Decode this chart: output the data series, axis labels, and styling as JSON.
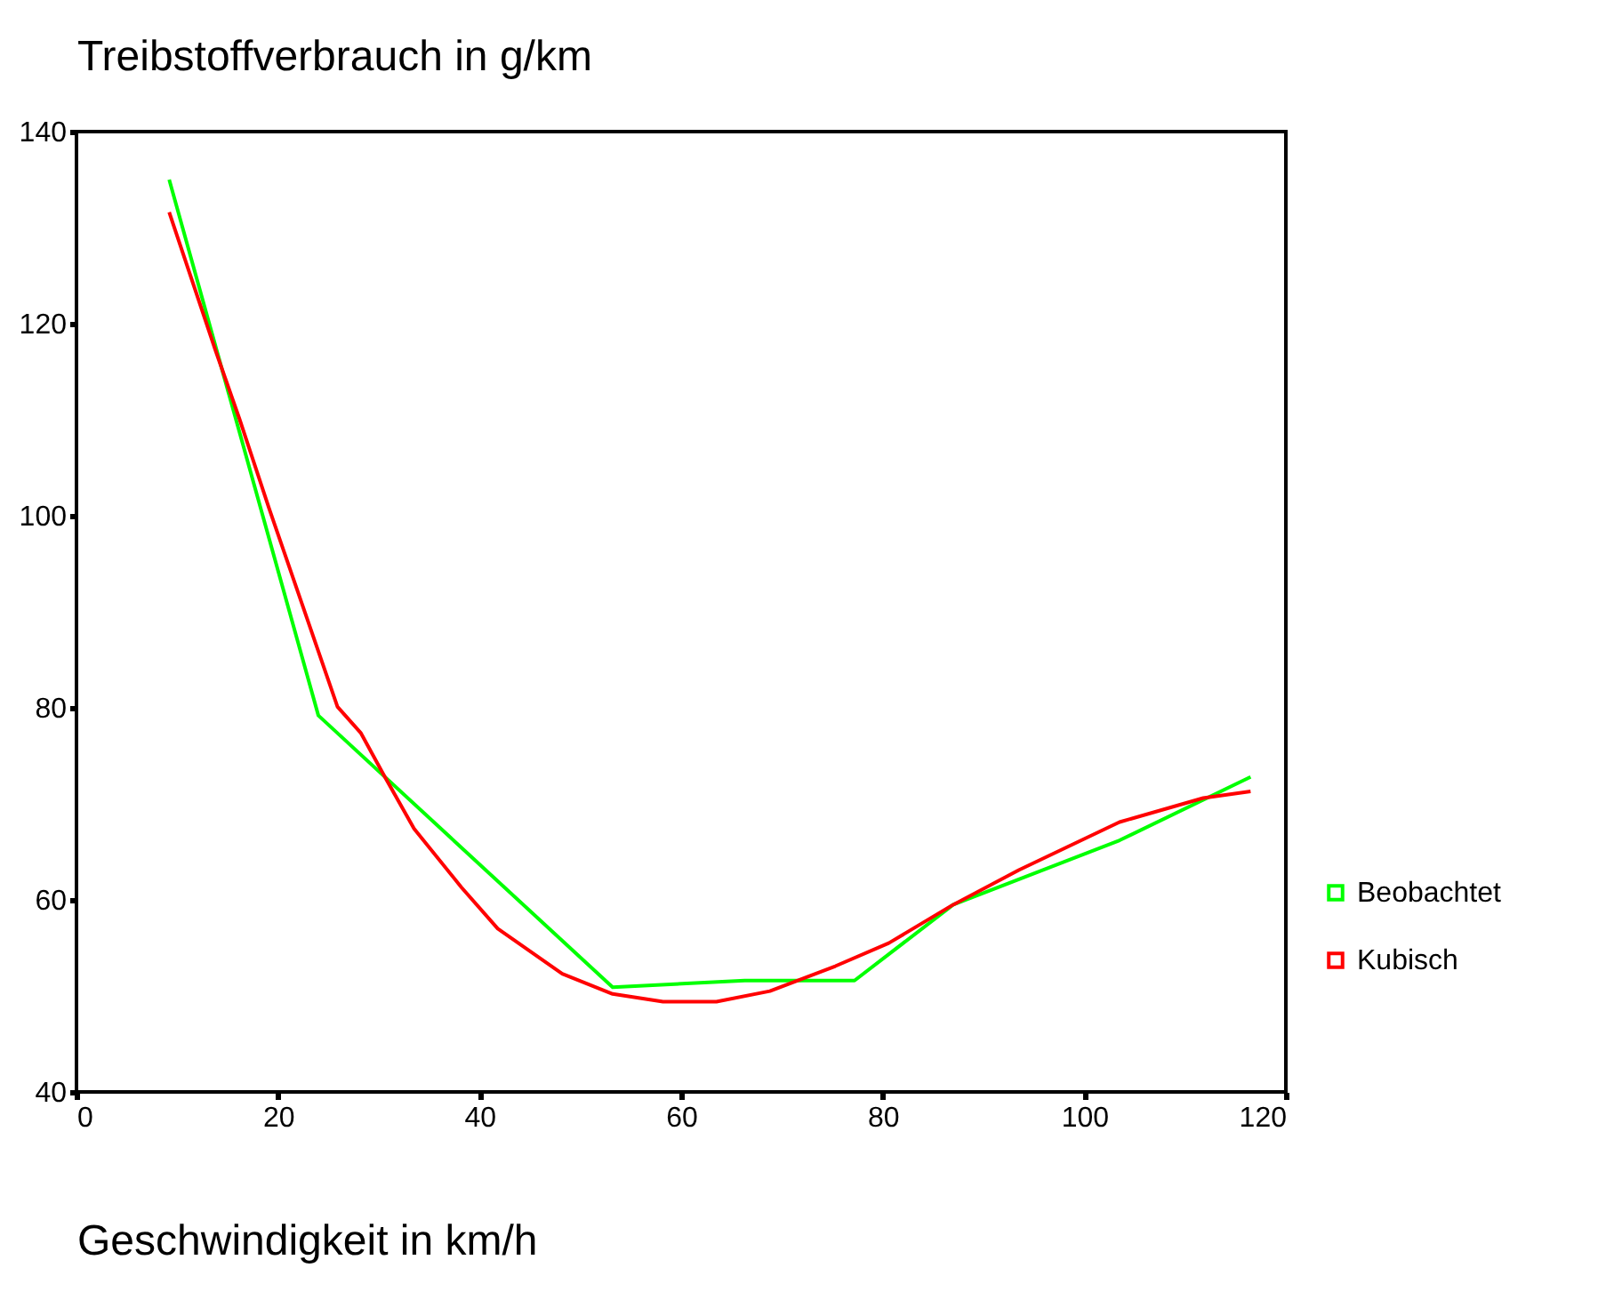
{
  "chart_data": {
    "type": "line",
    "ylabel": "Treibstoffverbrauch in g/km",
    "xlabel": "Geschwindigkeit in km/h",
    "xlim": [
      0,
      120
    ],
    "xticks": [
      0,
      20,
      40,
      60,
      80,
      100,
      120
    ],
    "ylim": [
      40,
      140
    ],
    "yticks": [
      40,
      60,
      80,
      100,
      120,
      140
    ],
    "grid": false,
    "legend": "bottom right",
    "marker": "none",
    "line_style": "solid",
    "series": [
      {
        "name": "Beobachtet",
        "color": "#00ff00",
        "x": [
          9.2,
          24,
          53.2,
          66.3,
          77.2,
          87,
          103.5,
          116.5
        ],
        "values": [
          135,
          79.2,
          50.9,
          51.6,
          51.6,
          59.5,
          66.2,
          72.8
        ]
      },
      {
        "name": "Kubisch",
        "color": "#ff0000",
        "x": [
          9.2,
          13.8,
          16.2,
          19.1,
          25.9,
          28.2,
          30.6,
          33.5,
          38.2,
          41.8,
          48.2,
          53.2,
          58.2,
          63.5,
          68.8,
          75.3,
          80.6,
          87,
          93.5,
          103.5,
          111.8,
          116.5
        ],
        "values": [
          131.6,
          117.2,
          110,
          100.8,
          80.1,
          77.4,
          72.8,
          67.4,
          61.3,
          57,
          52.3,
          50.2,
          49.4,
          49.4,
          50.5,
          53.1,
          55.5,
          59.5,
          63.1,
          68.1,
          70.6,
          71.3
        ]
      }
    ]
  }
}
